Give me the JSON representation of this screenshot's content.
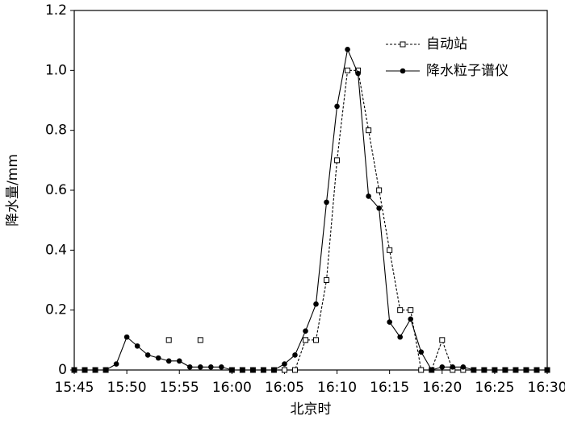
{
  "chart_data": {
    "type": "line",
    "x_label": "北京时",
    "y_label": "降水量/mm",
    "categories": [
      "15:45",
      null,
      null,
      null,
      null,
      "15:50",
      null,
      null,
      null,
      null,
      "15:55",
      null,
      null,
      null,
      null,
      "16:00",
      null,
      null,
      null,
      null,
      "16:05",
      null,
      null,
      null,
      null,
      "16:10",
      null,
      null,
      null,
      null,
      "16:15",
      null,
      null,
      null,
      null,
      "16:20",
      null,
      null,
      null,
      null,
      "16:25",
      null,
      null,
      null,
      null,
      "16:30"
    ],
    "ylim": [
      0,
      1.2
    ],
    "yticks": [
      0,
      0.2,
      0.4,
      0.6,
      0.8,
      {
        "value": 1,
        "label": "1.0"
      },
      1.2
    ],
    "legend": "top-right",
    "series": [
      {
        "name": "自动站",
        "color": "#000000",
        "marker": "square",
        "dashed": true,
        "values": [
          0,
          0,
          0,
          0,
          null,
          null,
          null,
          null,
          null,
          0.1,
          null,
          null,
          0.1,
          null,
          null,
          0,
          0,
          0,
          0,
          0,
          0,
          0,
          0.1,
          0.1,
          0.3,
          0.7,
          1.0,
          1.0,
          0.8,
          0.6,
          0.4,
          0.2,
          0.2,
          0,
          0,
          0.1,
          0,
          0,
          0,
          0,
          0,
          0,
          0,
          0,
          0,
          0
        ]
      },
      {
        "name": "降水粒子谱仪",
        "color": "#000000",
        "marker": "circle",
        "dashed": false,
        "values": [
          0,
          0,
          0,
          0,
          0.02,
          0.11,
          0.08,
          0.05,
          0.04,
          0.03,
          0.03,
          0.01,
          0.01,
          0.01,
          0.01,
          0,
          0,
          0,
          0,
          0,
          0.02,
          0.05,
          0.13,
          0.22,
          0.56,
          0.88,
          1.07,
          0.99,
          0.58,
          0.54,
          0.16,
          0.11,
          0.17,
          0.06,
          0,
          0.01,
          0.01,
          0.01,
          0,
          0,
          0,
          0,
          0,
          0,
          0,
          0
        ]
      }
    ]
  }
}
